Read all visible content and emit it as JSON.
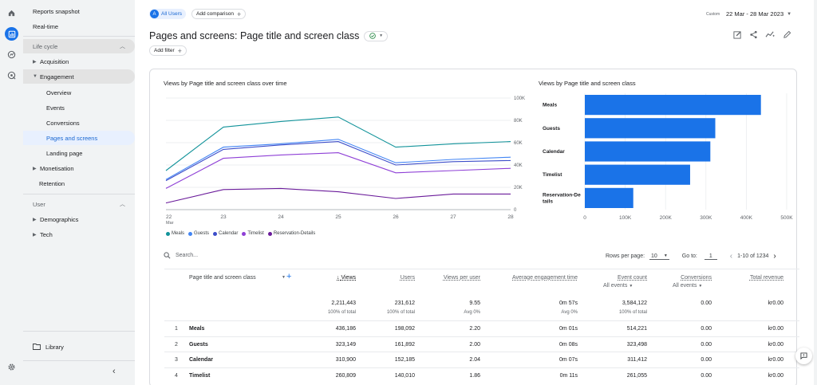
{
  "sidebar": {
    "reports_snapshot": "Reports snapshot",
    "realtime": "Real-time",
    "lifecycle": "Life cycle",
    "acquisition": "Acquisition",
    "engagement": "Engagement",
    "overview": "Overview",
    "events": "Events",
    "conversions": "Conversions",
    "pages_screens": "Pages and screens",
    "landing_page": "Landing page",
    "monetisation": "Monetisation",
    "retention": "Retention",
    "user": "User",
    "demographics": "Demographics",
    "tech": "Tech",
    "library": "Library"
  },
  "header": {
    "all_users_badge": "A",
    "all_users": "All Users",
    "add_comparison": "Add comparison",
    "custom": "Custom",
    "date_range": "22 Mar - 28 Mar 2023",
    "title": "Pages and screens: Page title and screen class",
    "add_filter": "Add filter"
  },
  "line_chart": {
    "title": "Views by Page title and screen class over time",
    "y_ticks": [
      "100K",
      "80K",
      "60K",
      "40K",
      "20K",
      "0"
    ],
    "x_ticks": [
      "22",
      "23",
      "24",
      "25",
      "26",
      "27",
      "28"
    ],
    "x_month": "Mar"
  },
  "bar_chart": {
    "title": "Views by Page title and screen class",
    "x_ticks": [
      "0",
      "100K",
      "200K",
      "300K",
      "400K",
      "500K"
    ],
    "categories": [
      "Meals",
      "Guests",
      "Calendar",
      "Timelist",
      "Reservation-De tails"
    ]
  },
  "chart_data": [
    {
      "type": "line",
      "title": "Views by Page title and screen class over time",
      "x": [
        "22 Mar",
        "23",
        "24",
        "25",
        "26",
        "27",
        "28"
      ],
      "ylim": [
        0,
        100000
      ],
      "series": [
        {
          "name": "Meals",
          "color": "#12939a",
          "values": [
            35000,
            74000,
            79000,
            83000,
            56000,
            59000,
            61000
          ]
        },
        {
          "name": "Guests",
          "color": "#4285f4",
          "values": [
            27000,
            56000,
            59000,
            63000,
            42000,
            45000,
            47000
          ]
        },
        {
          "name": "Calendar",
          "color": "#3c4dc9",
          "values": [
            26000,
            54000,
            58000,
            61000,
            40000,
            43000,
            44000
          ]
        },
        {
          "name": "Timelist",
          "color": "#8e3fd6",
          "values": [
            19000,
            46000,
            49000,
            51000,
            33000,
            35000,
            37000
          ]
        },
        {
          "name": "Reservation-Details",
          "color": "#6a1b9a",
          "values": [
            6000,
            18000,
            19000,
            16000,
            10000,
            14000,
            14000
          ]
        }
      ]
    },
    {
      "type": "bar",
      "title": "Views by Page title and screen class",
      "categories": [
        "Meals",
        "Guests",
        "Calendar",
        "Timelist",
        "Reservation-Details"
      ],
      "values": [
        436186,
        323149,
        310900,
        260809,
        120000
      ],
      "xlim": [
        0,
        500000
      ]
    }
  ],
  "legend": [
    {
      "name": "Meals",
      "color": "#12939a"
    },
    {
      "name": "Guests",
      "color": "#4285f4"
    },
    {
      "name": "Calendar",
      "color": "#3c4dc9"
    },
    {
      "name": "Timelist",
      "color": "#8e3fd6"
    },
    {
      "name": "Reservation-Details",
      "color": "#6a1b9a"
    }
  ],
  "table": {
    "search_placeholder": "Search...",
    "rows_per_page_label": "Rows per page:",
    "rows_per_page": "10",
    "goto_label": "Go to:",
    "goto_value": "1",
    "pagination": "1-10 of 1234",
    "col_dim": "Page title and screen class",
    "col_views": "Views",
    "col_users": "Users",
    "col_vpu": "Views per user",
    "col_aet": "Average engagement time",
    "col_events": "Event count",
    "col_events_sub": "All events",
    "col_conv": "Conversions",
    "col_conv_sub": "All events",
    "col_rev": "Total revenue",
    "totals": {
      "views": "2,211,443",
      "views_sub": "100% of total",
      "users": "231,612",
      "users_sub": "100% of total",
      "vpu": "9.55",
      "vpu_sub": "Avg 0%",
      "aet": "0m 57s",
      "aet_sub": "Avg 0%",
      "events": "3,584,122",
      "events_sub": "100% of total",
      "conv": "0.00",
      "rev": "kr0.00"
    },
    "rows": [
      {
        "idx": "1",
        "name": "Meals",
        "views": "436,186",
        "users": "198,092",
        "vpu": "2.20",
        "aet": "0m 01s",
        "events": "514,221",
        "conv": "0.00",
        "rev": "kr0.00"
      },
      {
        "idx": "2",
        "name": "Guests",
        "views": "323,149",
        "users": "161,892",
        "vpu": "2.00",
        "aet": "0m 08s",
        "events": "323,498",
        "conv": "0.00",
        "rev": "kr0.00"
      },
      {
        "idx": "3",
        "name": "Calendar",
        "views": "310,900",
        "users": "152,185",
        "vpu": "2.04",
        "aet": "0m 07s",
        "events": "311,412",
        "conv": "0.00",
        "rev": "kr0.00"
      },
      {
        "idx": "4",
        "name": "Timelist",
        "views": "260,809",
        "users": "140,010",
        "vpu": "1.86",
        "aet": "0m 11s",
        "events": "261,055",
        "conv": "0.00",
        "rev": "kr0.00"
      }
    ]
  },
  "colors": {
    "accent": "#1a73e8",
    "bar": "#1a73e8"
  }
}
